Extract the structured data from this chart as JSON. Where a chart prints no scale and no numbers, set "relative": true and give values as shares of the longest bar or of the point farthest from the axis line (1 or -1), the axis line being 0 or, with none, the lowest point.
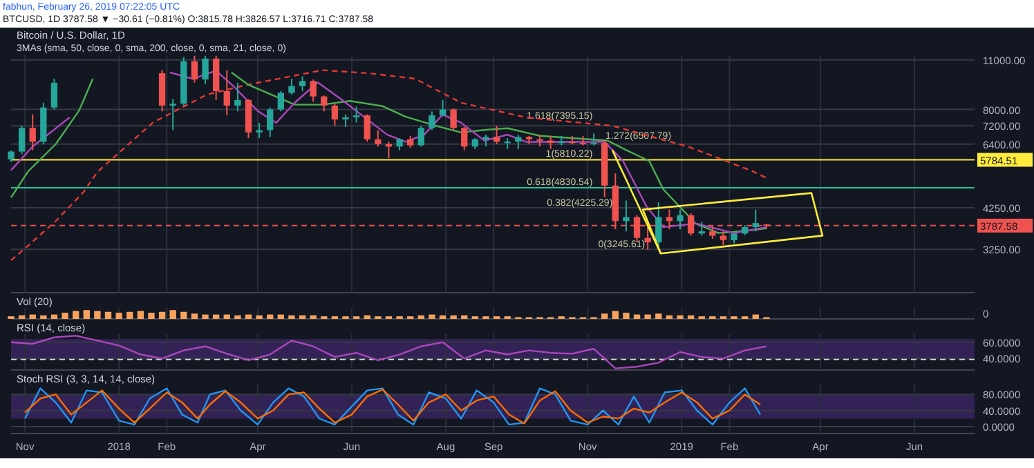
{
  "chart_data": [
    {
      "type": "candlestick",
      "title": "Bitcoin / U.S. Dollar, 1D",
      "subtitle": "3MAs (sma, 50, close, 0, sma, 200, close, 0, sma, 21, close, 0)",
      "log": true,
      "grid": true,
      "tick_labels": "y",
      "annotations": [
        "fabhun, February 26, 2019 07:22:05 UTC",
        "BTCUSD, 1D 3787.58 ▼ −30.61 (−0.81%) O:3815.78 H:3826.57 L:3716.71 C:3787.58",
        {
          "text": "1.618(7395.15)",
          "x": "2018-11-06",
          "y": 7395.15
        },
        {
          "text": "1.272(6507.79)",
          "x": "2018-12-27",
          "y": 6507.79
        },
        {
          "text": "1(5810.22)",
          "x": "2018-11-06",
          "y": 5810.22
        },
        {
          "text": "0.618(4830.54)",
          "x": "2018-11-06",
          "y": 4830.54
        },
        {
          "text": "0.382(4225.29)",
          "x": "2018-11-19",
          "y": 4225.29
        },
        {
          "text": "0(3245.61)",
          "x": "2018-12-10",
          "y": 3245.61
        }
      ],
      "xlim": [
        "2017-10-23",
        "2019-07-10"
      ],
      "ylim": [
        2460,
        11340
      ],
      "xticks": [
        {
          "value": "2017-11-01",
          "label": null
        },
        {
          "value": "2018-01-01",
          "label": null
        },
        {
          "value": "2018-02-01",
          "label": null
        },
        {
          "value": "2018-04-01",
          "label": null
        },
        {
          "value": "2018-06-01",
          "label": null
        },
        {
          "value": "2018-08-01",
          "label": null
        },
        {
          "value": "2018-09-01",
          "label": null
        },
        {
          "value": "2018-11-01",
          "label": null
        },
        {
          "value": "2019-01-01",
          "label": null
        },
        {
          "value": "2019-02-01",
          "label": null
        },
        {
          "value": "2019-04-01",
          "label": null
        },
        {
          "value": "2019-06-01",
          "label": null
        }
      ],
      "yticks": [
        {
          "value": 11000,
          "label": "11000.00"
        },
        {
          "value": 8000,
          "label": "8000.00"
        },
        {
          "value": 7200,
          "label": "7200.00"
        },
        {
          "value": 6400,
          "label": "6400.00"
        },
        {
          "value": 4250,
          "label": "4250.00"
        },
        {
          "value": 3250,
          "label": "3250.00"
        }
      ],
      "ref_lines": [
        {
          "axis": "y",
          "value": 5784.51,
          "label": "5784.51",
          "color": "#ffeb3b"
        },
        {
          "axis": "y",
          "value": 4830.54,
          "color": "#26c6a0"
        },
        {
          "axis": "y",
          "value": 3787.58,
          "label": "3787.58",
          "color": "#ef5350",
          "line_style": "dashed"
        }
      ],
      "x": [
        "2017-10-23",
        "2017-10-30",
        "2017-11-06",
        "2017-11-13",
        "2017-11-20",
        "2018-01-29",
        "2018-02-05",
        "2018-02-12",
        "2018-02-19",
        "2018-02-26",
        "2018-03-05",
        "2018-03-12",
        "2018-03-19",
        "2018-03-26",
        "2018-04-02",
        "2018-04-09",
        "2018-04-16",
        "2018-04-23",
        "2018-04-30",
        "2018-05-07",
        "2018-05-14",
        "2018-05-21",
        "2018-05-28",
        "2018-06-04",
        "2018-06-11",
        "2018-06-18",
        "2018-06-25",
        "2018-07-02",
        "2018-07-09",
        "2018-07-16",
        "2018-07-23",
        "2018-07-30",
        "2018-08-06",
        "2018-08-13",
        "2018-08-20",
        "2018-08-27",
        "2018-09-03",
        "2018-09-10",
        "2018-09-17",
        "2018-09-24",
        "2018-10-01",
        "2018-10-08",
        "2018-10-15",
        "2018-10-22",
        "2018-10-29",
        "2018-11-05",
        "2018-11-12",
        "2018-11-19",
        "2018-11-26",
        "2018-12-03",
        "2018-12-10",
        "2018-12-17",
        "2018-12-24",
        "2018-12-31",
        "2019-01-07",
        "2019-01-14",
        "2019-01-21",
        "2019-01-28",
        "2019-02-04",
        "2019-02-11",
        "2019-02-18",
        "2019-02-25"
      ],
      "ohlc": [
        [
          5800,
          6150,
          5700,
          6100
        ],
        [
          6100,
          7200,
          6000,
          7100
        ],
        [
          7100,
          7750,
          6150,
          6500
        ],
        [
          6500,
          8350,
          6400,
          8100
        ],
        [
          8100,
          9750,
          8000,
          9500
        ],
        [
          10100,
          10300,
          7900,
          8200
        ],
        [
          8200,
          8550,
          7000,
          8300
        ],
        [
          8300,
          11200,
          8200,
          10900
        ],
        [
          10900,
          11300,
          9500,
          9700
        ],
        [
          9700,
          11300,
          9400,
          11100
        ],
        [
          11100,
          11300,
          8500,
          9000
        ],
        [
          9000,
          10300,
          7700,
          8200
        ],
        [
          8200,
          9500,
          7900,
          8500
        ],
        [
          8500,
          8550,
          6650,
          6900
        ],
        [
          6900,
          7340,
          6650,
          7000
        ],
        [
          7000,
          8100,
          6700,
          8000
        ],
        [
          8000,
          9000,
          7900,
          8900
        ],
        [
          8900,
          9750,
          8800,
          9300
        ],
        [
          9300,
          9900,
          9000,
          9600
        ],
        [
          9600,
          9700,
          8400,
          8700
        ],
        [
          8700,
          8750,
          7900,
          8200
        ],
        [
          8200,
          8300,
          7200,
          7500
        ],
        [
          7500,
          7750,
          7150,
          7600
        ],
        [
          7600,
          8150,
          7350,
          7700
        ],
        [
          7700,
          7750,
          6500,
          6600
        ],
        [
          6600,
          7000,
          6300,
          6400
        ],
        [
          6400,
          6500,
          5850,
          6300
        ],
        [
          6300,
          6650,
          6150,
          6600
        ],
        [
          6600,
          6750,
          6250,
          6350
        ],
        [
          6350,
          7200,
          6300,
          7100
        ],
        [
          7100,
          7900,
          7000,
          7700
        ],
        [
          7700,
          8500,
          7650,
          8000
        ],
        [
          8000,
          8050,
          7000,
          7100
        ],
        [
          7100,
          7150,
          6150,
          6300
        ],
        [
          6300,
          6650,
          6200,
          6600
        ],
        [
          6600,
          6800,
          6300,
          6700
        ],
        [
          6700,
          7200,
          6400,
          6500
        ],
        [
          6500,
          6650,
          6200,
          6500
        ],
        [
          6500,
          6800,
          6200,
          6700
        ],
        [
          6700,
          6750,
          6400,
          6600
        ],
        [
          6600,
          6800,
          6300,
          6550
        ],
        [
          6550,
          6750,
          6200,
          6450
        ],
        [
          6450,
          6750,
          6350,
          6500
        ],
        [
          6500,
          6750,
          6400,
          6450
        ],
        [
          6450,
          6750,
          6350,
          6400
        ],
        [
          6400,
          6850,
          6350,
          6450
        ],
        [
          6450,
          6550,
          4550,
          4900
        ],
        [
          4900,
          5300,
          3700,
          3900
        ],
        [
          3900,
          4450,
          3650,
          4000
        ],
        [
          4000,
          4050,
          3400,
          3500
        ],
        [
          3500,
          3800,
          3245.61,
          3400
        ],
        [
          3400,
          4400,
          3300,
          4000
        ],
        [
          4000,
          4200,
          3700,
          3900
        ],
        [
          3900,
          4200,
          3700,
          4050
        ],
        [
          4050,
          4100,
          3550,
          3600
        ],
        [
          3600,
          3880,
          3550,
          3650
        ],
        [
          3650,
          3800,
          3480,
          3550
        ],
        [
          3550,
          3650,
          3340,
          3450
        ],
        [
          3450,
          3600,
          3380,
          3600
        ],
        [
          3600,
          3800,
          3560,
          3750
        ],
        [
          3750,
          4200,
          3650,
          3850
        ],
        [
          3815.78,
          3826.57,
          3716.71,
          3787.58
        ]
      ],
      "series": [
        {
          "type": "line",
          "color": "#e53935",
          "line_style": "dashed",
          "x": [
            "2017-10-23",
            "2017-11-01",
            "2017-11-21",
            "2017-12-09",
            "2017-12-18",
            "2018-01-23",
            "2018-02-27",
            "2018-03-24",
            "2018-05-13",
            "2018-06-12",
            "2018-07-12",
            "2018-08-11",
            "2018-09-22",
            "2018-11-17",
            "2019-01-05",
            "2019-02-15",
            "2019-02-25"
          ],
          "values": [
            3030,
            3270,
            3900,
            4700,
            5350,
            7350,
            8800,
            9350,
            10300,
            10100,
            9750,
            8350,
            7600,
            7200,
            6300,
            5400,
            5150
          ]
        },
        {
          "type": "line",
          "color": "#4caf50",
          "x": [
            "2017-10-23",
            "2017-11-03",
            "2017-11-21",
            "2017-12-06",
            "2017-12-15",
            "2018-01-20",
            "2018-03-15",
            "2018-03-26",
            "2018-04-25",
            "2018-05-13",
            "2018-05-31",
            "2018-06-21",
            "2018-07-06",
            "2018-07-27",
            "2018-08-11",
            "2018-08-26",
            "2018-09-10",
            "2018-10-01",
            "2018-11-14",
            "2018-11-26",
            "2018-12-11",
            "2018-12-20",
            "2019-01-10",
            "2019-01-25",
            "2019-02-12",
            "2019-02-25"
          ],
          "values": [
            4540,
            5365,
            6400,
            7925,
            9740,
            null,
            10150,
            9370,
            8250,
            8250,
            8450,
            8170,
            7630,
            7175,
            6900,
            7010,
            7090,
            6750,
            6545,
            6160,
            5740,
            4790,
            3840,
            3610,
            3665,
            3720
          ]
        },
        {
          "type": "line",
          "color": "#ab47bc",
          "x": [
            "2017-10-23",
            "2017-11-06",
            "2017-11-30",
            "2018-01-01",
            "2018-02-03",
            "2018-02-18",
            "2018-03-05",
            "2018-03-17",
            "2018-04-01",
            "2018-04-13",
            "2018-04-25",
            "2018-05-10",
            "2018-05-25",
            "2018-06-09",
            "2018-06-24",
            "2018-07-06",
            "2018-07-18",
            "2018-07-30",
            "2018-08-11",
            "2018-08-26",
            "2018-09-10",
            "2018-09-22",
            "2018-11-12",
            "2018-11-24",
            "2018-12-09",
            "2018-12-20",
            "2019-01-10",
            "2019-02-04",
            "2019-02-25"
          ],
          "values": [
            5410,
            6300,
            7600,
            null,
            10150,
            9740,
            10270,
            9225,
            7925,
            7340,
            8355,
            9515,
            8550,
            7625,
            6800,
            6495,
            6800,
            7745,
            7340,
            6545,
            6800,
            6495,
            6495,
            5740,
            4300,
            3750,
            3840,
            3610,
            3750
          ]
        }
      ]
    },
    {
      "type": "bar",
      "title": "Vol (20)",
      "relative": true,
      "grid": true,
      "tick_labels": false,
      "color": "#f7a35c",
      "annotations": [
        "0"
      ],
      "xlim": [
        "2017-10-23",
        "2019-07-10"
      ],
      "xticks": [
        {
          "value": "2017-11-01",
          "label": null
        },
        {
          "value": "2018-01-01",
          "label": null
        },
        {
          "value": "2018-02-01",
          "label": null
        },
        {
          "value": "2018-04-01",
          "label": null
        },
        {
          "value": "2018-06-01",
          "label": null
        },
        {
          "value": "2018-08-01",
          "label": null
        },
        {
          "value": "2018-09-01",
          "label": null
        },
        {
          "value": "2018-11-01",
          "label": null
        },
        {
          "value": "2019-01-01",
          "label": null
        },
        {
          "value": "2019-02-01",
          "label": null
        },
        {
          "value": "2019-04-01",
          "label": null
        },
        {
          "value": "2019-06-01",
          "label": null
        }
      ],
      "x": [
        "2017-10-23",
        "2017-10-30",
        "2017-11-06",
        "2017-11-13",
        "2017-11-20",
        "2017-11-27",
        "2017-12-04",
        "2017-12-11",
        "2017-12-18",
        "2017-12-25",
        "2018-01-01",
        "2018-01-08",
        "2018-01-15",
        "2018-01-22",
        "2018-01-29",
        "2018-02-05",
        "2018-02-12",
        "2018-02-19",
        "2018-02-26",
        "2018-03-05",
        "2018-03-12",
        "2018-03-19",
        "2018-03-26",
        "2018-04-02",
        "2018-04-09",
        "2018-04-16",
        "2018-04-23",
        "2018-04-30",
        "2018-05-07",
        "2018-05-14",
        "2018-05-21",
        "2018-05-28",
        "2018-06-04",
        "2018-06-11",
        "2018-06-18",
        "2018-06-25",
        "2018-07-02",
        "2018-07-09",
        "2018-07-16",
        "2018-07-23",
        "2018-07-30",
        "2018-08-06",
        "2018-08-13",
        "2018-08-20",
        "2018-08-27",
        "2018-09-03",
        "2018-09-10",
        "2018-09-17",
        "2018-09-24",
        "2018-10-01",
        "2018-10-08",
        "2018-10-15",
        "2018-10-22",
        "2018-10-29",
        "2018-11-05",
        "2018-11-12",
        "2018-11-19",
        "2018-11-26",
        "2018-12-03",
        "2018-12-10",
        "2018-12-17",
        "2018-12-24",
        "2018-12-31",
        "2019-01-07",
        "2019-01-14",
        "2019-01-21",
        "2019-01-28",
        "2019-02-04",
        "2019-02-11",
        "2019-02-18",
        "2019-02-25"
      ],
      "values": [
        0.3,
        0.4,
        0.5,
        0.4,
        0.5,
        0.7,
        0.9,
        1,
        0.9,
        0.8,
        0.7,
        0.8,
        0.9,
        0.7,
        0.8,
        1,
        0.8,
        0.6,
        0.5,
        0.5,
        0.5,
        0.4,
        0.5,
        0.4,
        0.5,
        0.5,
        0.4,
        0.4,
        0.4,
        0.3,
        0.3,
        0.3,
        0.3,
        0.4,
        0.3,
        0.3,
        0.3,
        0.3,
        0.4,
        0.5,
        0.4,
        0.4,
        0.4,
        0.3,
        0.3,
        0.3,
        0.3,
        0.2,
        0.2,
        0.2,
        0.2,
        0.3,
        0.2,
        0.2,
        0.2,
        0.6,
        0.9,
        0.7,
        0.5,
        0.5,
        0.6,
        0.4,
        0.4,
        0.4,
        0.3,
        0.3,
        0.3,
        0.3,
        0.3,
        0.5,
        0.2
      ]
    },
    {
      "type": "line",
      "title": "RSI (14, close)",
      "grid": true,
      "tick_labels": "y",
      "xlim": [
        "2017-10-23",
        "2019-07-10"
      ],
      "ylim": [
        26,
        70
      ],
      "xticks": [
        {
          "value": "2017-11-01",
          "label": null
        },
        {
          "value": "2018-01-01",
          "label": null
        },
        {
          "value": "2018-02-01",
          "label": null
        },
        {
          "value": "2018-04-01",
          "label": null
        },
        {
          "value": "2018-06-01",
          "label": null
        },
        {
          "value": "2018-08-01",
          "label": null
        },
        {
          "value": "2018-09-01",
          "label": null
        },
        {
          "value": "2018-11-01",
          "label": null
        },
        {
          "value": "2019-01-01",
          "label": null
        },
        {
          "value": "2019-02-01",
          "label": null
        },
        {
          "value": "2019-04-01",
          "label": null
        },
        {
          "value": "2019-06-01",
          "label": null
        }
      ],
      "yticks": [
        {
          "value": 60,
          "label": "60.0000"
        },
        {
          "value": 40,
          "label": "40.0000"
        }
      ],
      "bands": [
        {
          "axis": "y",
          "from": 39,
          "to": 64,
          "color": "#4a2a7a"
        }
      ],
      "ref_lines": [
        {
          "axis": "y",
          "value": 39,
          "color": "#d1d4dc",
          "line_style": "dashed"
        }
      ],
      "series": [
        {
          "color": "#ab47bc",
          "x": [
            "2017-10-23",
            "2017-11-06",
            "2017-11-20",
            "2017-12-04",
            "2017-12-18",
            "2018-01-01",
            "2018-01-15",
            "2018-01-29",
            "2018-02-12",
            "2018-02-26",
            "2018-03-12",
            "2018-03-26",
            "2018-04-09",
            "2018-04-23",
            "2018-05-07",
            "2018-05-21",
            "2018-06-04",
            "2018-06-18",
            "2018-07-02",
            "2018-07-16",
            "2018-07-30",
            "2018-08-13",
            "2018-08-27",
            "2018-09-10",
            "2018-09-24",
            "2018-10-08",
            "2018-10-22",
            "2018-11-05",
            "2018-11-19",
            "2018-12-03",
            "2018-12-17",
            "2018-12-31",
            "2019-01-14",
            "2019-01-28",
            "2019-02-11",
            "2019-02-25"
          ],
          "values": [
            60,
            58,
            66,
            68,
            62,
            56,
            45,
            40,
            50,
            55,
            46,
            38,
            45,
            62,
            55,
            42,
            47,
            38,
            45,
            55,
            60,
            40,
            50,
            45,
            50,
            47,
            46,
            52,
            28,
            30,
            35,
            48,
            42,
            40,
            50,
            55
          ]
        }
      ]
    },
    {
      "type": "line",
      "title": "Stoch RSI (3, 3, 14, 14, close)",
      "grid": true,
      "xlim": [
        "2017-10-23",
        "2019-07-10"
      ],
      "ylim": [
        -17,
        103
      ],
      "xticks": [
        {
          "value": "2017-11-01",
          "label": "Nov"
        },
        {
          "value": "2018-01-01",
          "label": "2018"
        },
        {
          "value": "2018-02-01",
          "label": "Feb"
        },
        {
          "value": "2018-04-01",
          "label": "Apr"
        },
        {
          "value": "2018-06-01",
          "label": "Jun"
        },
        {
          "value": "2018-08-01",
          "label": "Aug"
        },
        {
          "value": "2018-09-01",
          "label": "Sep"
        },
        {
          "value": "2018-11-01",
          "label": "Nov"
        },
        {
          "value": "2019-01-01",
          "label": "2019"
        },
        {
          "value": "2019-02-01",
          "label": "Feb"
        },
        {
          "value": "2019-04-01",
          "label": "Apr"
        },
        {
          "value": "2019-06-01",
          "label": "Jun"
        }
      ],
      "yticks": [
        {
          "value": 80,
          "label": "80.0000"
        },
        {
          "value": 40,
          "label": "40.0000"
        },
        {
          "value": 0,
          "label": "0.0000"
        }
      ],
      "bands": [
        {
          "axis": "y",
          "from": 20,
          "to": 80,
          "color": "#4a2a7a"
        }
      ],
      "x": [
        "2017-11-01",
        "2017-11-11",
        "2017-11-21",
        "2017-12-01",
        "2017-12-11",
        "2017-12-21",
        "2018-01-01",
        "2018-01-11",
        "2018-01-21",
        "2018-02-01",
        "2018-02-11",
        "2018-02-21",
        "2018-03-01",
        "2018-03-11",
        "2018-03-21",
        "2018-04-01",
        "2018-04-11",
        "2018-04-21",
        "2018-05-01",
        "2018-05-11",
        "2018-05-21",
        "2018-06-01",
        "2018-06-11",
        "2018-06-21",
        "2018-07-01",
        "2018-07-11",
        "2018-07-21",
        "2018-08-01",
        "2018-08-11",
        "2018-08-21",
        "2018-09-01",
        "2018-09-11",
        "2018-09-21",
        "2018-10-01",
        "2018-10-11",
        "2018-10-21",
        "2018-11-01",
        "2018-11-11",
        "2018-11-21",
        "2018-12-01",
        "2018-12-11",
        "2018-12-21",
        "2019-01-01",
        "2019-01-11",
        "2019-01-21",
        "2019-02-01",
        "2019-02-11",
        "2019-02-21"
      ],
      "series": [
        {
          "color": "#2196f3",
          "values": [
            20,
            95,
            60,
            10,
            90,
            85,
            15,
            5,
            70,
            95,
            30,
            10,
            80,
            90,
            40,
            5,
            60,
            95,
            75,
            20,
            5,
            50,
            90,
            95,
            30,
            5,
            85,
            70,
            20,
            90,
            60,
            5,
            10,
            95,
            80,
            15,
            5,
            40,
            5,
            75,
            10,
            85,
            90,
            40,
            5,
            60,
            95,
            30
          ]
        },
        {
          "color": "#ff6d00",
          "values": [
            35,
            70,
            80,
            30,
            60,
            90,
            45,
            10,
            45,
            85,
            60,
            20,
            55,
            88,
            60,
            20,
            40,
            80,
            85,
            45,
            10,
            30,
            75,
            92,
            55,
            15,
            60,
            80,
            40,
            65,
            75,
            30,
            8,
            65,
            88,
            40,
            10,
            25,
            20,
            45,
            35,
            60,
            85,
            60,
            20,
            40,
            80,
            55
          ]
        }
      ]
    }
  ]
}
